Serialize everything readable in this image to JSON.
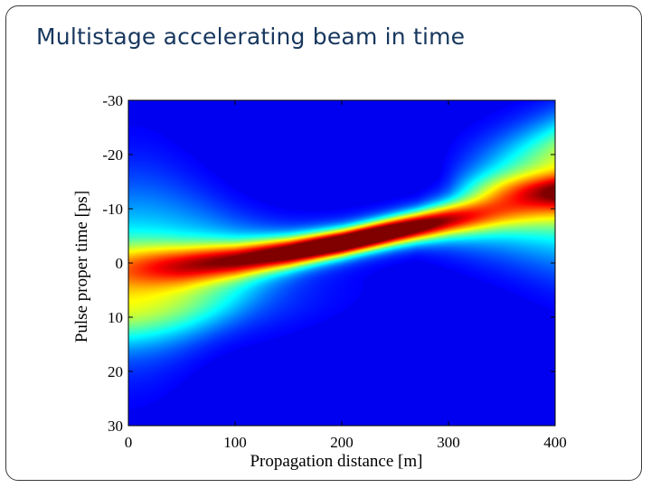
{
  "slide": {
    "title": "Multistage accelerating beam in time"
  },
  "chart_data": {
    "type": "heatmap",
    "title": "",
    "xlabel": "Propagation distance [m]",
    "ylabel": "Pulse proper time [ps]",
    "xlim": [
      0,
      400
    ],
    "ylim": [
      -30,
      30
    ],
    "y_axis_reversed": true,
    "colormap": "jet",
    "background_color": "#00008f",
    "x_ticks": [
      0,
      100,
      200,
      300,
      400
    ],
    "x_tick_labels": [
      "0",
      "100",
      "200",
      "300",
      "400"
    ],
    "y_ticks": [
      -30,
      -20,
      -10,
      0,
      10,
      20,
      30
    ],
    "y_tick_labels": [
      "-30",
      "-20",
      "-10",
      "0",
      "10",
      "20",
      "30"
    ],
    "beam_center_ps": [
      {
        "x": 0,
        "t": 0.8
      },
      {
        "x": 50,
        "t": 0.3
      },
      {
        "x": 100,
        "t": -0.6
      },
      {
        "x": 150,
        "t": -2.0
      },
      {
        "x": 200,
        "t": -3.8
      },
      {
        "x": 250,
        "t": -6.0
      },
      {
        "x": 300,
        "t": -8.0
      },
      {
        "x": 350,
        "t": -9.6
      },
      {
        "x": 400,
        "t": -10.8
      }
    ],
    "peak_intensity_region_m": [
      150,
      260
    ],
    "peak_intensity_time_ps": [
      -7,
      -3
    ]
  }
}
